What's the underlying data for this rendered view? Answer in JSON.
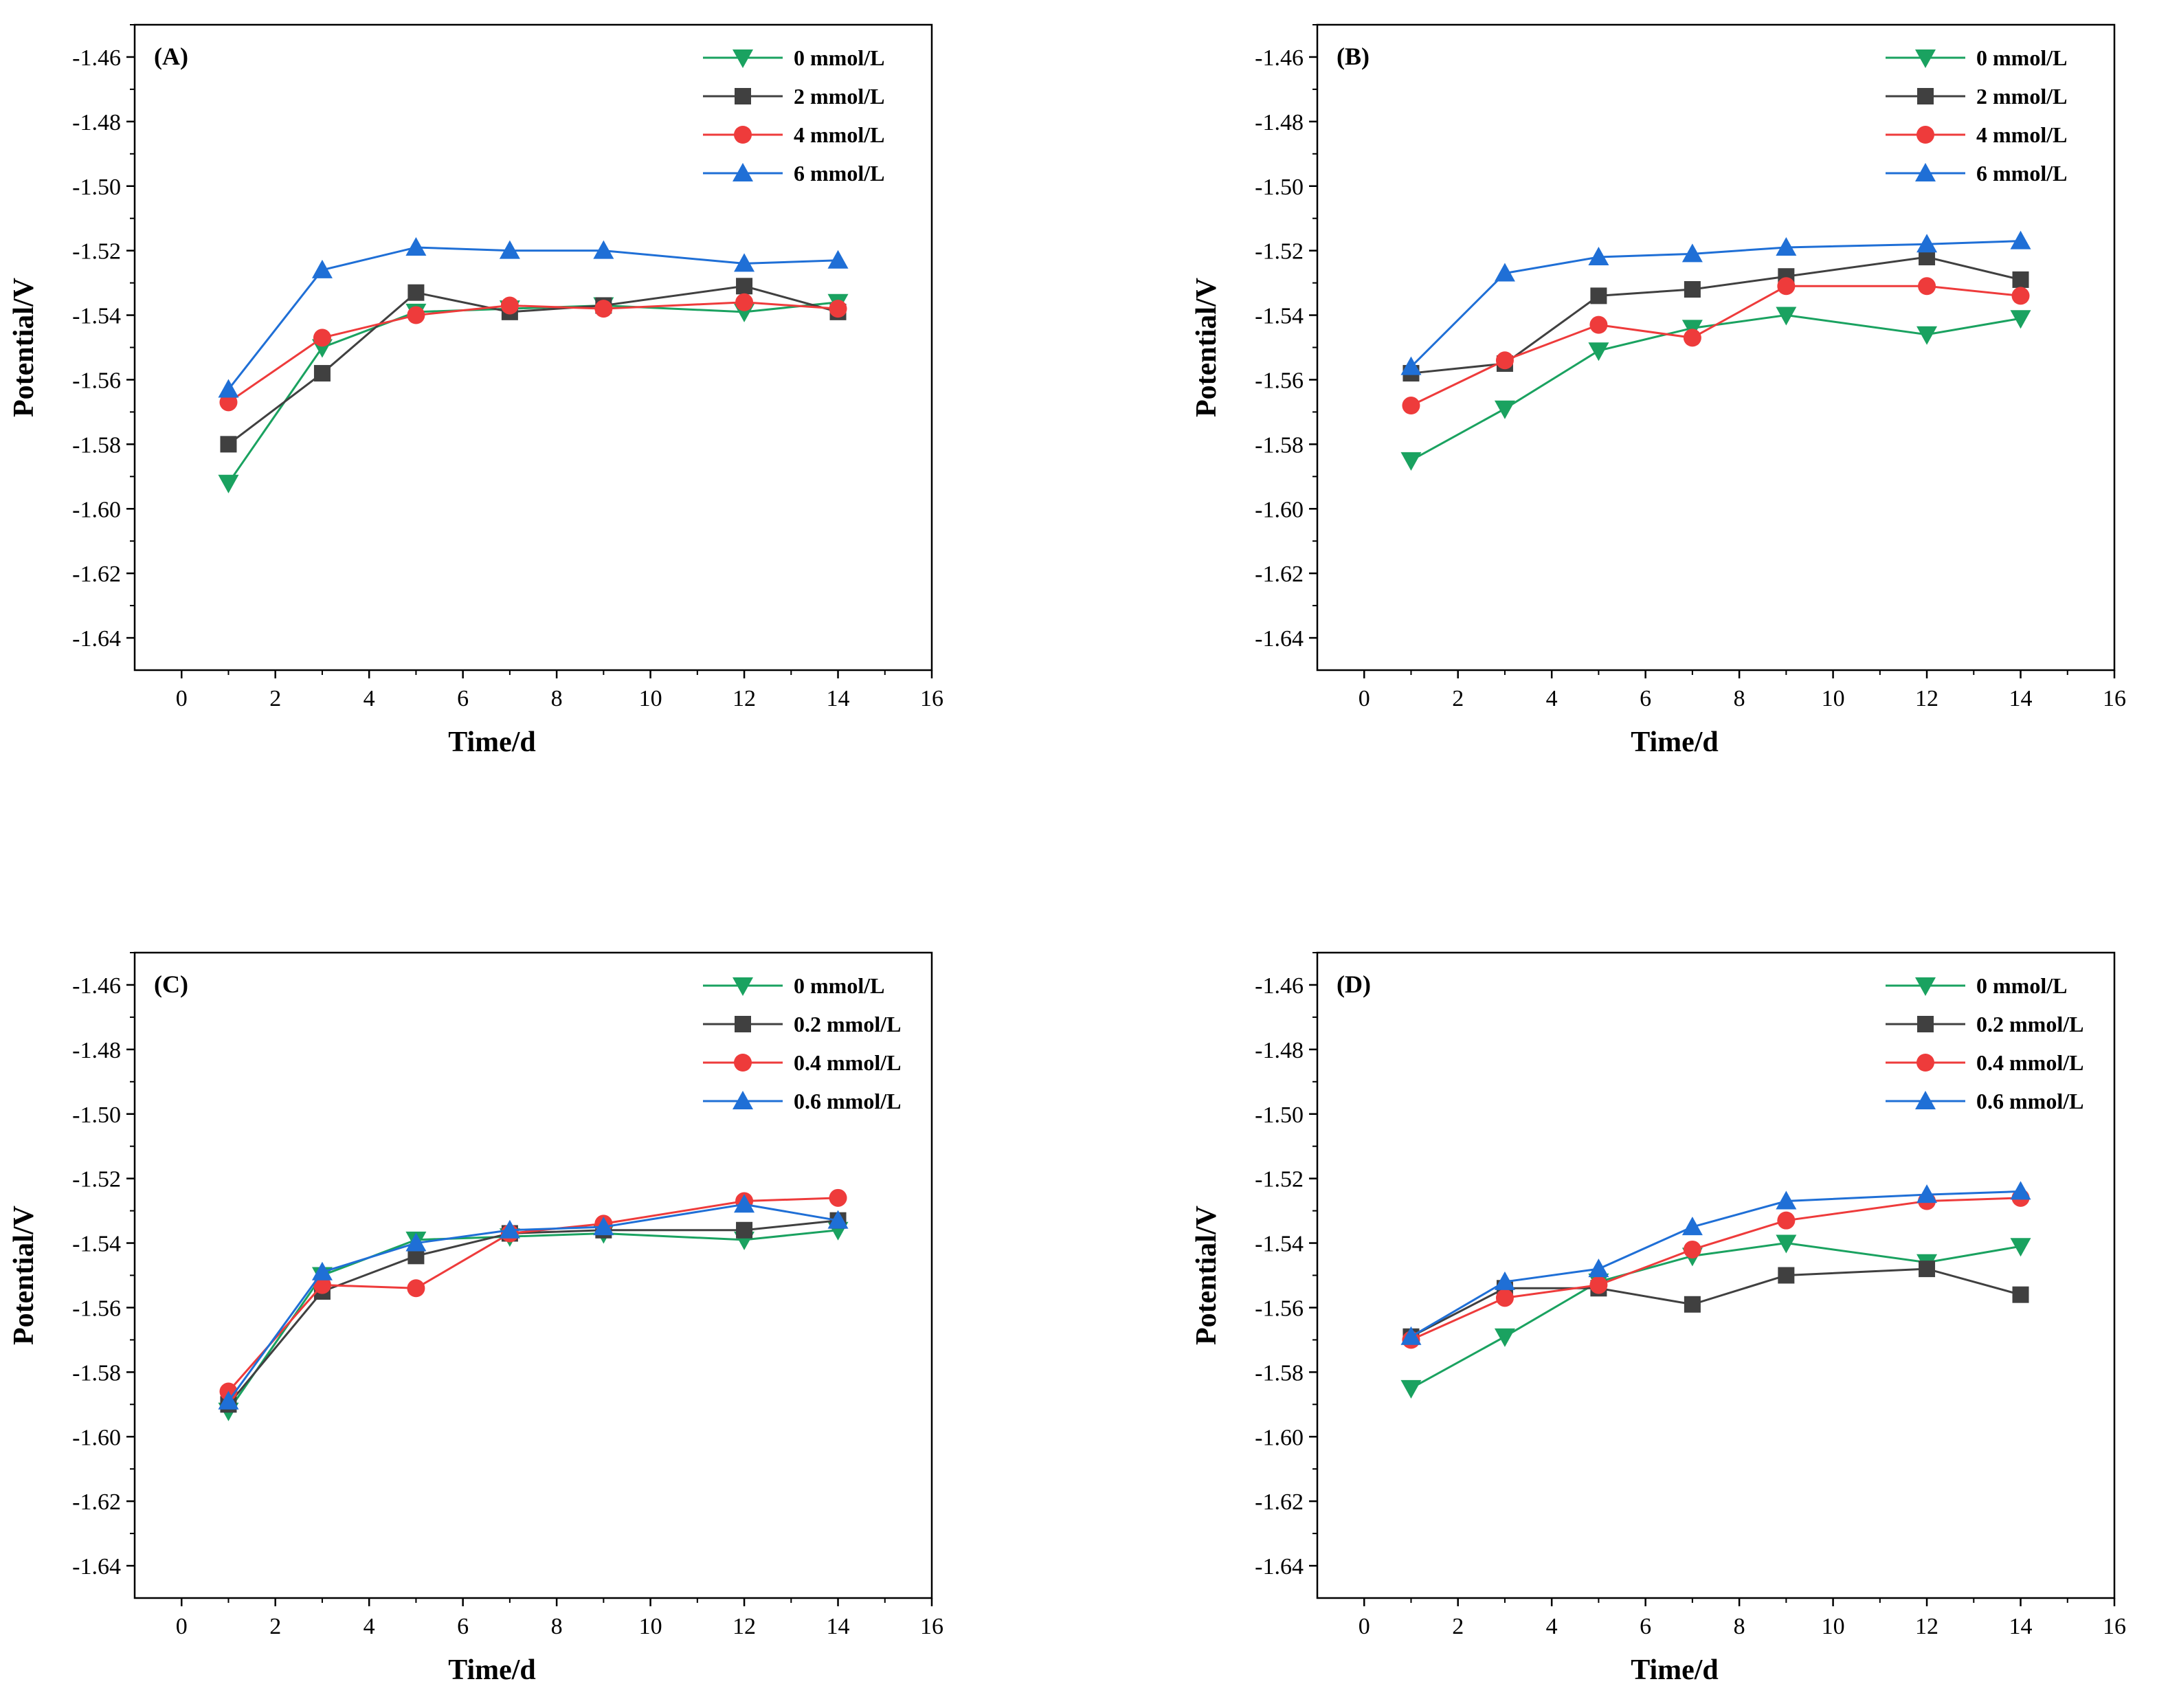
{
  "figure": {
    "panels": [
      {
        "label": "(A)",
        "series_labels": [
          "0 mmol/L",
          "2 mmol/L",
          "4 mmol/L",
          "6 mmol/L"
        ]
      },
      {
        "label": "(B)",
        "series_labels": [
          "0 mmol/L",
          "2 mmol/L",
          "4 mmol/L",
          "6 mmol/L"
        ]
      },
      {
        "label": "(C)",
        "series_labels": [
          "0 mmol/L",
          "0.2 mmol/L",
          "0.4 mmol/L",
          "0.6 mmol/L"
        ]
      },
      {
        "label": "(D)",
        "series_labels": [
          "0 mmol/L",
          "0.2 mmol/L",
          "0.4 mmol/L",
          "0.6 mmol/L"
        ]
      }
    ]
  },
  "chart_data": [
    {
      "type": "line",
      "title": "(A)",
      "xlabel": "Time/d",
      "ylabel": "Potential/V",
      "xlim": [
        -1,
        16
      ],
      "ylim": [
        -1.65,
        -1.45
      ],
      "xticks": [
        "0",
        "2",
        "4",
        "6",
        "8",
        "10",
        "12",
        "14",
        "16"
      ],
      "yticks": [
        "-1.46",
        "-1.48",
        "-1.50",
        "-1.52",
        "-1.54",
        "-1.56",
        "-1.58",
        "-1.60",
        "-1.62",
        "-1.64"
      ],
      "legend_position": "top-right",
      "x": [
        1,
        3,
        5,
        7,
        9,
        12,
        14
      ],
      "series": [
        {
          "name": "0 mmol/L",
          "color": "#1aa260",
          "marker": "triangle-down",
          "values": [
            -1.592,
            -1.55,
            -1.539,
            -1.538,
            -1.537,
            -1.539,
            -1.536
          ]
        },
        {
          "name": "2 mmol/L",
          "color": "#404040",
          "marker": "square",
          "values": [
            -1.58,
            -1.558,
            -1.533,
            -1.539,
            -1.537,
            -1.531,
            -1.539
          ]
        },
        {
          "name": "4 mmol/L",
          "color": "#ee3b3b",
          "marker": "circle",
          "values": [
            -1.567,
            -1.547,
            -1.54,
            -1.537,
            -1.538,
            -1.536,
            -1.538
          ]
        },
        {
          "name": "6 mmol/L",
          "color": "#1f6fd6",
          "marker": "triangle-up",
          "values": [
            -1.563,
            -1.526,
            -1.519,
            -1.52,
            -1.52,
            -1.524,
            -1.523
          ]
        }
      ]
    },
    {
      "type": "line",
      "title": "(B)",
      "xlabel": "Time/d",
      "ylabel": "Potential/V",
      "xlim": [
        -1,
        16
      ],
      "ylim": [
        -1.65,
        -1.45
      ],
      "xticks": [
        "0",
        "2",
        "4",
        "6",
        "8",
        "10",
        "12",
        "14",
        "16"
      ],
      "yticks": [
        "-1.46",
        "-1.48",
        "-1.50",
        "-1.52",
        "-1.54",
        "-1.56",
        "-1.58",
        "-1.60",
        "-1.62",
        "-1.64"
      ],
      "legend_position": "top-right",
      "x": [
        1,
        3,
        5,
        7,
        9,
        12,
        14
      ],
      "series": [
        {
          "name": "0 mmol/L",
          "color": "#1aa260",
          "marker": "triangle-down",
          "values": [
            -1.585,
            -1.569,
            -1.551,
            -1.544,
            -1.54,
            -1.546,
            -1.541
          ]
        },
        {
          "name": "2 mmol/L",
          "color": "#404040",
          "marker": "square",
          "values": [
            -1.558,
            -1.555,
            -1.534,
            -1.532,
            -1.528,
            -1.522,
            -1.529
          ]
        },
        {
          "name": "4 mmol/L",
          "color": "#ee3b3b",
          "marker": "circle",
          "values": [
            -1.568,
            -1.554,
            -1.543,
            -1.547,
            -1.531,
            -1.531,
            -1.534
          ]
        },
        {
          "name": "6 mmol/L",
          "color": "#1f6fd6",
          "marker": "triangle-up",
          "values": [
            -1.556,
            -1.527,
            -1.522,
            -1.521,
            -1.519,
            -1.518,
            -1.517
          ]
        }
      ]
    },
    {
      "type": "line",
      "title": "(C)",
      "xlabel": "Time/d",
      "ylabel": "Potential/V",
      "xlim": [
        -1,
        16
      ],
      "ylim": [
        -1.65,
        -1.45
      ],
      "xticks": [
        "0",
        "2",
        "4",
        "6",
        "8",
        "10",
        "12",
        "14",
        "16"
      ],
      "yticks": [
        "-1.46",
        "-1.48",
        "-1.50",
        "-1.52",
        "-1.54",
        "-1.56",
        "-1.58",
        "-1.60",
        "-1.62",
        "-1.64"
      ],
      "legend_position": "top-right",
      "x": [
        1,
        3,
        5,
        7,
        9,
        12,
        14
      ],
      "series": [
        {
          "name": "0 mmol/L",
          "color": "#1aa260",
          "marker": "triangle-down",
          "values": [
            -1.592,
            -1.55,
            -1.539,
            -1.538,
            -1.537,
            -1.539,
            -1.536
          ]
        },
        {
          "name": "0.2 mmol/L",
          "color": "#404040",
          "marker": "square",
          "values": [
            -1.59,
            -1.555,
            -1.544,
            -1.537,
            -1.536,
            -1.536,
            -1.533
          ]
        },
        {
          "name": "0.4 mmol/L",
          "color": "#ee3b3b",
          "marker": "circle",
          "values": [
            -1.586,
            -1.553,
            -1.554,
            -1.537,
            -1.534,
            -1.527,
            -1.526
          ]
        },
        {
          "name": "0.6 mmol/L",
          "color": "#1f6fd6",
          "marker": "triangle-up",
          "values": [
            -1.589,
            -1.549,
            -1.54,
            -1.536,
            -1.535,
            -1.528,
            -1.533
          ]
        }
      ]
    },
    {
      "type": "line",
      "title": "(D)",
      "xlabel": "Time/d",
      "ylabel": "Potential/V",
      "xlim": [
        -1,
        16
      ],
      "ylim": [
        -1.65,
        -1.45
      ],
      "xticks": [
        "0",
        "2",
        "4",
        "6",
        "8",
        "10",
        "12",
        "14",
        "16"
      ],
      "yticks": [
        "-1.46",
        "-1.48",
        "-1.50",
        "-1.52",
        "-1.54",
        "-1.56",
        "-1.58",
        "-1.60",
        "-1.62",
        "-1.64"
      ],
      "legend_position": "top-right",
      "x": [
        1,
        3,
        5,
        7,
        9,
        12,
        14
      ],
      "series": [
        {
          "name": "0 mmol/L",
          "color": "#1aa260",
          "marker": "triangle-down",
          "values": [
            -1.585,
            -1.569,
            -1.552,
            -1.544,
            -1.54,
            -1.546,
            -1.541
          ]
        },
        {
          "name": "0.2 mmol/L",
          "color": "#404040",
          "marker": "square",
          "values": [
            -1.569,
            -1.554,
            -1.554,
            -1.559,
            -1.55,
            -1.548,
            -1.556
          ]
        },
        {
          "name": "0.4 mmol/L",
          "color": "#ee3b3b",
          "marker": "circle",
          "values": [
            -1.57,
            -1.557,
            -1.553,
            -1.542,
            -1.533,
            -1.527,
            -1.526
          ]
        },
        {
          "name": "0.6 mmol/L",
          "color": "#1f6fd6",
          "marker": "triangle-up",
          "values": [
            -1.569,
            -1.552,
            -1.548,
            -1.535,
            -1.527,
            -1.525,
            -1.524
          ]
        }
      ]
    }
  ]
}
